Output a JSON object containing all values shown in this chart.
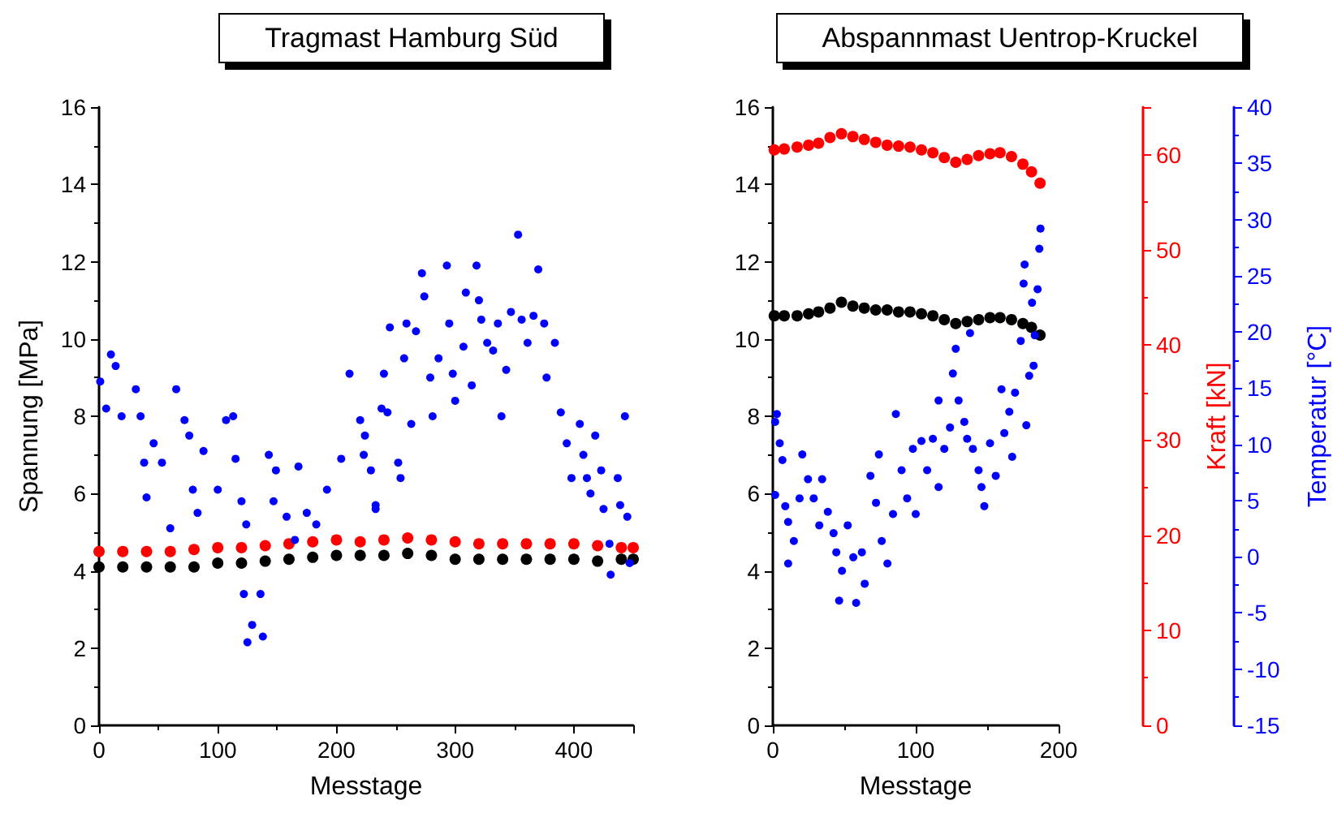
{
  "chart_data": [
    {
      "type": "scatter",
      "title": "Tragmast Hamburg Süd",
      "xlabel": "Messtage",
      "ylabel": "Spannung [MPa]",
      "xlim": [
        0,
        450
      ],
      "xticks": [
        0,
        100,
        200,
        300,
        400
      ],
      "ylim": [
        0,
        16
      ],
      "yticks": [
        0,
        2,
        4,
        6,
        8,
        10,
        12,
        14,
        16
      ],
      "grid": false,
      "marker": "circle",
      "series": [
        {
          "color": "#000000",
          "x": [
            0,
            20,
            40,
            60,
            80,
            100,
            120,
            140,
            160,
            180,
            200,
            220,
            240,
            260,
            280,
            300,
            320,
            340,
            360,
            380,
            400,
            420,
            440,
            450
          ],
          "values": [
            4.1,
            4.1,
            4.1,
            4.1,
            4.1,
            4.2,
            4.2,
            4.25,
            4.3,
            4.35,
            4.4,
            4.4,
            4.4,
            4.45,
            4.4,
            4.3,
            4.3,
            4.3,
            4.3,
            4.3,
            4.3,
            4.25,
            4.3,
            4.3
          ]
        },
        {
          "color": "#ff0000",
          "x": [
            0,
            20,
            40,
            60,
            80,
            100,
            120,
            140,
            160,
            180,
            200,
            220,
            240,
            260,
            280,
            300,
            320,
            340,
            360,
            380,
            400,
            420,
            440,
            450
          ],
          "values": [
            4.5,
            4.5,
            4.5,
            4.5,
            4.55,
            4.6,
            4.6,
            4.65,
            4.7,
            4.75,
            4.8,
            4.75,
            4.8,
            4.85,
            4.8,
            4.75,
            4.7,
            4.7,
            4.7,
            4.7,
            4.7,
            4.65,
            4.6,
            4.6
          ]
        },
        {
          "color": "#0000ff",
          "x": [
            1,
            10,
            14,
            6,
            19,
            31,
            35,
            38,
            40,
            46,
            53,
            60,
            65,
            72,
            76,
            79,
            88,
            83,
            100,
            107,
            113,
            115,
            120,
            124,
            122,
            129,
            125,
            138,
            136,
            143,
            149,
            147,
            158,
            168,
            165,
            175,
            183,
            192,
            204,
            211,
            220,
            223,
            229,
            233,
            238,
            224,
            233,
            240,
            243,
            245,
            252,
            254,
            257,
            259,
            263,
            267,
            272,
            274,
            279,
            281,
            286,
            293,
            295,
            298,
            300,
            307,
            309,
            314,
            318,
            320,
            322,
            327,
            332,
            336,
            339,
            343,
            347,
            353,
            356,
            361,
            366,
            370,
            375,
            377,
            384,
            389,
            394,
            398,
            405,
            408,
            411,
            414,
            418,
            423,
            425,
            430,
            431,
            437,
            439,
            443,
            445,
            447
          ],
          "values": [
            8.9,
            9.6,
            9.3,
            8.2,
            8.0,
            8.7,
            8.0,
            6.8,
            5.9,
            7.3,
            6.8,
            5.1,
            8.7,
            7.9,
            7.5,
            6.1,
            7.1,
            5.5,
            6.1,
            7.9,
            8.0,
            6.9,
            5.8,
            5.2,
            3.4,
            2.6,
            2.15,
            2.3,
            3.4,
            7.0,
            6.6,
            5.8,
            5.4,
            6.7,
            4.8,
            5.5,
            5.2,
            6.1,
            6.9,
            9.1,
            7.9,
            7.0,
            6.6,
            5.7,
            8.2,
            7.5,
            5.6,
            9.1,
            8.1,
            10.3,
            6.8,
            6.4,
            9.5,
            10.4,
            7.8,
            10.2,
            11.7,
            11.1,
            9.0,
            8.0,
            9.5,
            11.9,
            10.4,
            9.1,
            8.4,
            9.8,
            11.2,
            8.8,
            11.9,
            11.0,
            10.5,
            9.9,
            9.7,
            10.4,
            8.0,
            9.2,
            10.7,
            12.7,
            10.5,
            9.9,
            10.6,
            11.8,
            10.4,
            9.0,
            9.9,
            8.1,
            7.3,
            6.4,
            7.8,
            7.0,
            6.4,
            6.0,
            7.5,
            6.6,
            5.6,
            4.7,
            3.9,
            6.4,
            5.7,
            8.0,
            5.4,
            4.2
          ]
        }
      ]
    },
    {
      "type": "scatter",
      "title": "Abspannmast Uentrop-Kruckel",
      "xlabel": "Messtage",
      "y2label": "Kraft [kN]",
      "y3label": "Temperatur [°C]",
      "xlim": [
        0,
        200
      ],
      "xticks": [
        0,
        100,
        200
      ],
      "ylim": [
        0,
        16
      ],
      "yticks": [
        0,
        2,
        4,
        6,
        8,
        10,
        12,
        14,
        16
      ],
      "y2lim": [
        0,
        65
      ],
      "y2ticks": [
        0,
        10,
        20,
        30,
        40,
        50,
        60
      ],
      "y3lim": [
        -15,
        40
      ],
      "y3ticks": [
        -15,
        -10,
        -5,
        0,
        5,
        10,
        15,
        20,
        25,
        30,
        35,
        40
      ],
      "grid": false,
      "marker": "circle",
      "series": [
        {
          "color": "#000000",
          "x": [
            1,
            8,
            17,
            25,
            32,
            40,
            48,
            56,
            64,
            72,
            80,
            88,
            96,
            104,
            112,
            120,
            128,
            136,
            144,
            152,
            159,
            167,
            175,
            181,
            187
          ],
          "values": [
            10.6,
            10.6,
            10.6,
            10.65,
            10.7,
            10.8,
            10.95,
            10.85,
            10.8,
            10.75,
            10.75,
            10.7,
            10.7,
            10.65,
            10.6,
            10.5,
            10.4,
            10.45,
            10.5,
            10.55,
            10.55,
            10.5,
            10.4,
            10.3,
            10.1
          ]
        },
        {
          "color": "#ff0000",
          "x": [
            1,
            8,
            17,
            25,
            32,
            40,
            48,
            56,
            64,
            72,
            80,
            88,
            96,
            104,
            112,
            120,
            128,
            136,
            144,
            152,
            159,
            167,
            175,
            181,
            187
          ],
          "values": [
            60.5,
            60.6,
            60.8,
            61.0,
            61.2,
            61.8,
            62.2,
            61.9,
            61.6,
            61.3,
            61.0,
            60.9,
            60.8,
            60.5,
            60.2,
            59.7,
            59.2,
            59.5,
            59.9,
            60.1,
            60.2,
            59.8,
            59.0,
            58.2,
            57.0
          ],
          "axis": "y2"
        },
        {
          "color": "#0000ff",
          "x": [
            2.8,
            1.6,
            4.8,
            6.7,
            1.6,
            8.7,
            10.7,
            10.7,
            14.7,
            18.7,
            20.6,
            24.6,
            28.6,
            32.5,
            34.5,
            38.5,
            42.5,
            44.4,
            48.4,
            46.4,
            52.4,
            56.3,
            58.3,
            62.3,
            64.3,
            68.3,
            72.2,
            74.2,
            76.2,
            80.2,
            84.1,
            86.1,
            90.1,
            94.0,
            98.0,
            100,
            104,
            108,
            112,
            116,
            116,
            120,
            124,
            126,
            128,
            130,
            134,
            136,
            138,
            140,
            144,
            146,
            148,
            152,
            156,
            160,
            162,
            165.5,
            167.5,
            169.5,
            173.5,
            175.5,
            176.2,
            177.4,
            179.4,
            181.4,
            182.5,
            183.3,
            185.3,
            186.5,
            187.3
          ],
          "values": [
            12.7,
            12.0,
            10.1,
            8.6,
            5.5,
            4.5,
            3.1,
            -0.6,
            1.4,
            5.2,
            9.1,
            6.9,
            5.2,
            2.8,
            6.9,
            4.0,
            2.1,
            0.4,
            -1.25,
            -3.9,
            2.8,
            -0.05,
            -4.1,
            0.4,
            -2.4,
            7.2,
            4.8,
            9.1,
            1.4,
            -0.6,
            3.8,
            12.7,
            7.7,
            5.2,
            9.6,
            3.8,
            10.3,
            7.7,
            10.5,
            6.2,
            13.9,
            9.6,
            11.5,
            16.3,
            18.5,
            13.9,
            12.0,
            10.5,
            19.9,
            9.6,
            7.7,
            6.2,
            4.5,
            10.1,
            7.2,
            14.9,
            11.0,
            12.9,
            8.9,
            14.6,
            19.2,
            24.3,
            26.0,
            11.7,
            16.1,
            22.6,
            17.0,
            19.7,
            23.8,
            27.4,
            29.2
          ],
          "axis": "y3"
        }
      ]
    }
  ]
}
